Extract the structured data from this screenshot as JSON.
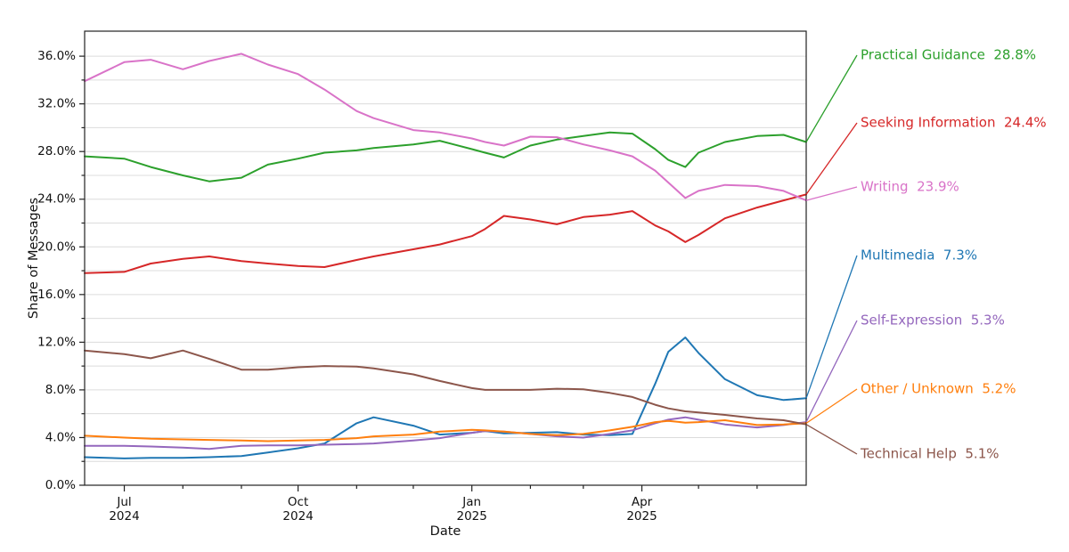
{
  "chart_data": {
    "type": "line",
    "title": "",
    "xlabel": "Date",
    "ylabel": "Share of Messages",
    "ylim": [
      0,
      38.1
    ],
    "grid": true,
    "grid_step_pct": 2,
    "label_step_pct": 4,
    "yticklabels": [
      "0.0%",
      "4.0%",
      "8.0%",
      "12.0%",
      "16.0%",
      "20.0%",
      "24.0%",
      "28.0%",
      "32.0%",
      "36.0%"
    ],
    "xticks": [
      {
        "date": "2024-07-01",
        "label": [
          "Jul",
          "2024"
        ]
      },
      {
        "date": "2024-08-01"
      },
      {
        "date": "2024-09-01"
      },
      {
        "date": "2024-10-01",
        "label": [
          "Oct",
          "2024"
        ]
      },
      {
        "date": "2024-11-01"
      },
      {
        "date": "2024-12-01"
      },
      {
        "date": "2025-01-01",
        "label": [
          "Jan",
          "2025"
        ]
      },
      {
        "date": "2025-02-01"
      },
      {
        "date": "2025-03-01"
      },
      {
        "date": "2025-04-01",
        "label": [
          "Apr",
          "2025"
        ]
      },
      {
        "date": "2025-05-01"
      },
      {
        "date": "2025-06-01"
      }
    ],
    "legend_position": "right-callouts",
    "x": [
      "2024-06-10",
      "2024-07-01",
      "2024-07-15",
      "2024-08-01",
      "2024-08-15",
      "2024-09-01",
      "2024-09-15",
      "2024-10-01",
      "2024-10-15",
      "2024-11-01",
      "2024-11-10",
      "2024-12-01",
      "2024-12-15",
      "2025-01-01",
      "2025-01-08",
      "2025-01-18",
      "2025-02-01",
      "2025-02-15",
      "2025-03-01",
      "2025-03-15",
      "2025-03-27",
      "2025-04-08",
      "2025-04-15",
      "2025-04-24",
      "2025-05-01",
      "2025-05-15",
      "2025-06-01",
      "2025-06-15",
      "2025-06-27"
    ],
    "series": [
      {
        "name": "Practical Guidance",
        "end_label": "28.8%",
        "color": "#2ca02c",
        "values": [
          27.6,
          27.4,
          26.7,
          26.0,
          25.5,
          25.8,
          26.9,
          27.4,
          27.9,
          28.1,
          28.3,
          28.6,
          28.9,
          28.2,
          27.9,
          27.5,
          28.5,
          29.0,
          29.3,
          29.6,
          29.5,
          28.2,
          27.3,
          26.7,
          27.9,
          28.8,
          29.3,
          29.4,
          28.8
        ]
      },
      {
        "name": "Seeking Information",
        "end_label": "24.4%",
        "color": "#d62728",
        "values": [
          17.8,
          17.9,
          18.6,
          19.0,
          19.2,
          18.8,
          18.6,
          18.4,
          18.3,
          18.9,
          19.2,
          19.8,
          20.2,
          20.9,
          21.5,
          22.6,
          22.3,
          21.9,
          22.5,
          22.7,
          23.0,
          21.8,
          21.3,
          20.4,
          21.0,
          22.4,
          23.3,
          23.9,
          24.4
        ]
      },
      {
        "name": "Writing",
        "end_label": "23.9%",
        "color": "#d973c8",
        "values": [
          33.9,
          35.5,
          35.7,
          34.9,
          35.6,
          36.2,
          35.3,
          34.5,
          33.2,
          31.4,
          30.8,
          29.8,
          29.6,
          29.1,
          28.8,
          28.5,
          29.25,
          29.2,
          28.6,
          28.1,
          27.6,
          26.4,
          25.4,
          24.1,
          24.7,
          25.2,
          25.1,
          24.7,
          23.9
        ]
      },
      {
        "name": "Multimedia",
        "end_label": "7.3%",
        "color": "#1f77b4",
        "values": [
          2.35,
          2.25,
          2.3,
          2.3,
          2.35,
          2.45,
          2.75,
          3.1,
          3.5,
          5.2,
          5.7,
          5.0,
          4.25,
          4.4,
          4.55,
          4.35,
          4.4,
          4.45,
          4.25,
          4.2,
          4.3,
          8.5,
          11.2,
          12.4,
          11.1,
          8.9,
          7.55,
          7.15,
          7.3
        ]
      },
      {
        "name": "Self-Expression",
        "end_label": "5.3%",
        "color": "#9467bd",
        "values": [
          3.3,
          3.3,
          3.25,
          3.15,
          3.05,
          3.3,
          3.35,
          3.35,
          3.4,
          3.45,
          3.5,
          3.75,
          3.95,
          4.4,
          4.55,
          4.5,
          4.3,
          4.1,
          4.0,
          4.3,
          4.6,
          5.2,
          5.5,
          5.7,
          5.5,
          5.1,
          4.85,
          5.05,
          5.3
        ]
      },
      {
        "name": "Other / Unknown",
        "end_label": "5.2%",
        "color": "#ff7f0e",
        "values": [
          4.15,
          4.0,
          3.9,
          3.85,
          3.8,
          3.75,
          3.7,
          3.75,
          3.8,
          3.95,
          4.1,
          4.25,
          4.5,
          4.65,
          4.6,
          4.5,
          4.3,
          4.2,
          4.3,
          4.6,
          4.9,
          5.3,
          5.4,
          5.25,
          5.3,
          5.45,
          5.05,
          5.1,
          5.2
        ]
      },
      {
        "name": "Technical Help",
        "end_label": "5.1%",
        "color": "#8c564b",
        "values": [
          11.3,
          11.0,
          10.65,
          11.3,
          10.6,
          9.7,
          9.7,
          9.9,
          10.0,
          9.95,
          9.8,
          9.3,
          8.75,
          8.15,
          8.0,
          8.0,
          8.0,
          8.1,
          8.05,
          7.75,
          7.4,
          6.75,
          6.45,
          6.2,
          6.1,
          5.9,
          5.6,
          5.45,
          5.1
        ]
      }
    ]
  }
}
